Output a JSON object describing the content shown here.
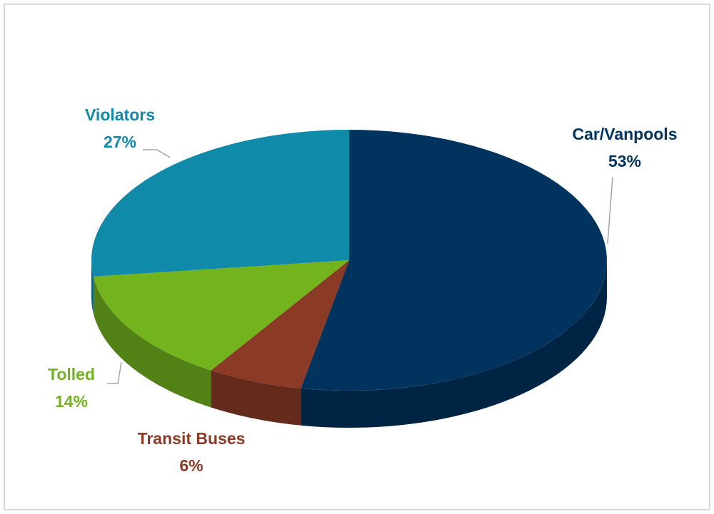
{
  "chart_data": {
    "type": "pie",
    "categories": [
      "Car/Vanpools",
      "Transit Buses",
      "Tolled",
      "Violators"
    ],
    "values": [
      53,
      6,
      14,
      27
    ],
    "value_labels": [
      "53%",
      "6%",
      "14%",
      "27%"
    ],
    "colors": [
      "#00335e",
      "#8b3a26",
      "#72b31e",
      "#0f8aa8"
    ]
  }
}
